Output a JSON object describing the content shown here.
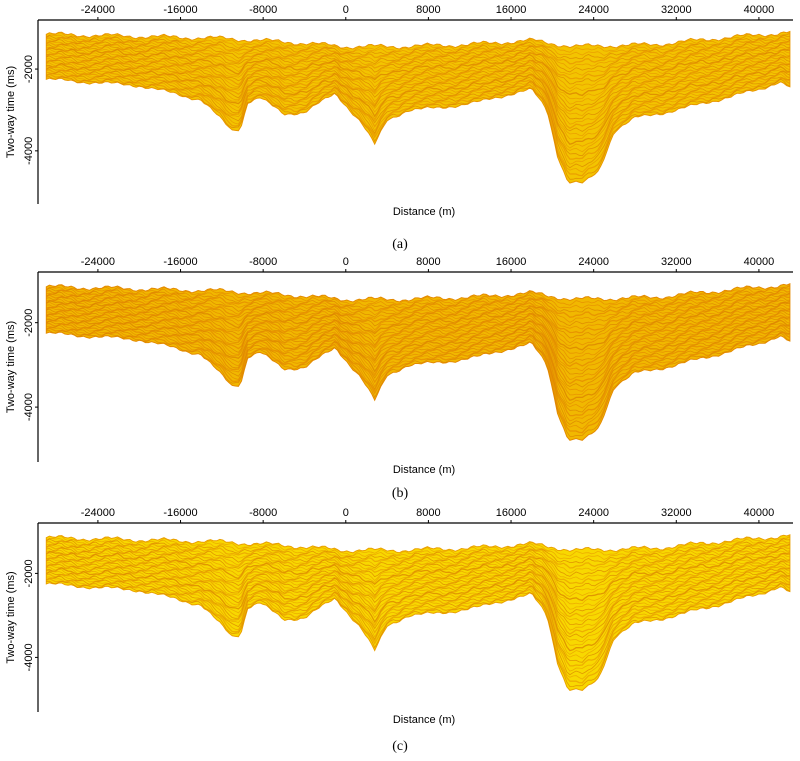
{
  "chart_data": [
    {
      "type": "area",
      "panel_label": "(a)",
      "xlabel": "Distance (m)",
      "ylabel": "Two-way time (ms)",
      "x_ticks": [
        "-24000",
        "-16000",
        "-8000",
        "0",
        "8000",
        "16000",
        "24000",
        "32000",
        "40000"
      ],
      "y_ticks": [
        "-2000",
        "-4000"
      ],
      "fill_color": "#f3c400",
      "stroke_color": "#e89600",
      "top_profile_x": [
        -29000,
        -20000,
        -12000,
        -5000,
        0,
        5000,
        12000,
        18000,
        22000,
        30000,
        36000,
        43000
      ],
      "top_profile_y": [
        -1150,
        -1200,
        -1250,
        -1350,
        -1450,
        -1450,
        -1400,
        -1300,
        -1450,
        -1400,
        -1250,
        -1100
      ],
      "bottom_profile_x": [
        -29000,
        -20000,
        -14000,
        -12000,
        -11000,
        -10200,
        -9500,
        -8300,
        -6000,
        -4000,
        -1000,
        1500,
        2800,
        4000,
        6000,
        9000,
        13000,
        16000,
        18000,
        19500,
        20500,
        21500,
        23000,
        24500,
        26000,
        28000,
        32000,
        36000,
        40000,
        42000,
        43000
      ],
      "bottom_profile_y": [
        -2250,
        -2400,
        -2750,
        -3250,
        -3500,
        -3450,
        -2800,
        -2700,
        -3100,
        -3050,
        -2600,
        -3300,
        -3850,
        -3250,
        -3000,
        -2950,
        -2800,
        -2600,
        -2500,
        -3000,
        -4100,
        -4750,
        -4800,
        -4500,
        -3500,
        -3200,
        -3000,
        -2750,
        -2500,
        -2300,
        -2450
      ]
    },
    {
      "type": "area",
      "panel_label": "(b)",
      "xlabel": "Distance (m)",
      "ylabel": "Two-way time (ms)",
      "x_ticks": [
        "-24000",
        "-16000",
        "-8000",
        "0",
        "8000",
        "16000",
        "24000",
        "32000",
        "40000"
      ],
      "y_ticks": [
        "-2000",
        "-4000"
      ],
      "fill_color": "#f1b800",
      "stroke_color": "#e48a00",
      "top_profile_x": [
        -29000,
        -20000,
        -12000,
        -5000,
        0,
        5000,
        12000,
        18000,
        22000,
        30000,
        36000,
        43000
      ],
      "top_profile_y": [
        -1150,
        -1200,
        -1250,
        -1350,
        -1450,
        -1450,
        -1400,
        -1300,
        -1450,
        -1400,
        -1250,
        -1100
      ],
      "bottom_profile_x": [
        -29000,
        -20000,
        -14000,
        -12000,
        -11000,
        -10200,
        -9500,
        -8300,
        -6000,
        -4000,
        -1000,
        1500,
        2800,
        4000,
        6000,
        9000,
        13000,
        16000,
        18000,
        19500,
        20500,
        21500,
        23000,
        24500,
        26000,
        28000,
        32000,
        36000,
        40000,
        42000,
        43000
      ],
      "bottom_profile_y": [
        -2250,
        -2400,
        -2750,
        -3250,
        -3500,
        -3450,
        -2800,
        -2700,
        -3100,
        -3050,
        -2600,
        -3300,
        -3850,
        -3250,
        -3000,
        -2950,
        -2800,
        -2600,
        -2500,
        -3000,
        -4100,
        -4750,
        -4800,
        -4500,
        -3500,
        -3200,
        -3000,
        -2750,
        -2500,
        -2300,
        -2450
      ]
    },
    {
      "type": "area",
      "panel_label": "(c)",
      "xlabel": "Distance (m)",
      "ylabel": "Two-way time (ms)",
      "x_ticks": [
        "-24000",
        "-16000",
        "-8000",
        "0",
        "8000",
        "16000",
        "24000",
        "32000",
        "40000"
      ],
      "y_ticks": [
        "-2000",
        "-4000"
      ],
      "fill_color": "#f8d800",
      "stroke_color": "#eaa000",
      "top_profile_x": [
        -29000,
        -20000,
        -12000,
        -5000,
        0,
        5000,
        12000,
        18000,
        22000,
        30000,
        36000,
        43000
      ],
      "top_profile_y": [
        -1150,
        -1200,
        -1250,
        -1350,
        -1450,
        -1450,
        -1400,
        -1300,
        -1450,
        -1400,
        -1250,
        -1100
      ],
      "bottom_profile_x": [
        -29000,
        -20000,
        -14000,
        -12000,
        -11000,
        -10200,
        -9500,
        -8300,
        -6000,
        -4000,
        -1000,
        1500,
        2800,
        4000,
        6000,
        9000,
        13000,
        16000,
        18000,
        19500,
        20500,
        21500,
        23000,
        24500,
        26000,
        28000,
        32000,
        36000,
        40000,
        42000,
        43000
      ],
      "bottom_profile_y": [
        -2250,
        -2400,
        -2750,
        -3250,
        -3500,
        -3450,
        -2800,
        -2700,
        -3100,
        -3050,
        -2600,
        -3300,
        -3850,
        -3250,
        -3000,
        -2950,
        -2800,
        -2600,
        -2500,
        -3000,
        -4100,
        -4750,
        -4800,
        -4500,
        -3500,
        -3200,
        -3000,
        -2750,
        -2500,
        -2300,
        -2450
      ]
    }
  ]
}
